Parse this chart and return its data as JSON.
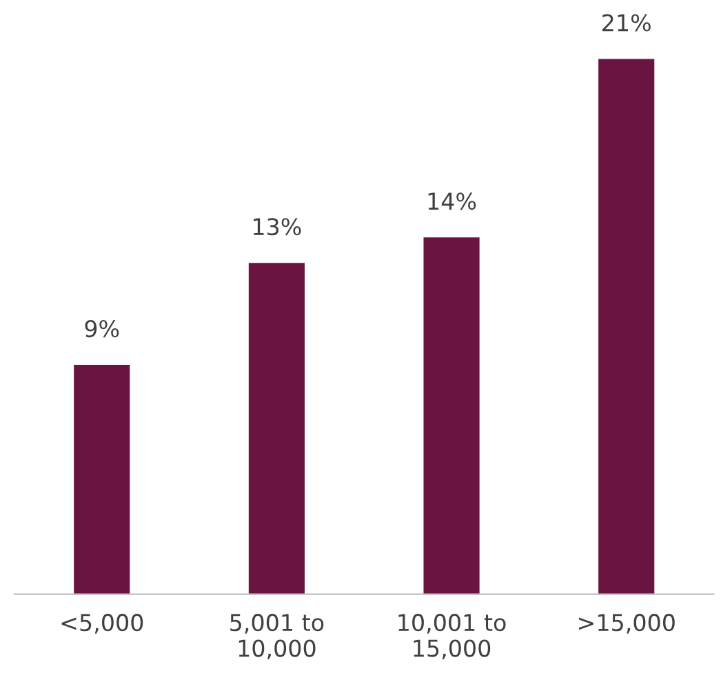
{
  "chart_data": {
    "type": "bar",
    "categories": [
      "<5,000",
      "5,001 to\n10,000",
      "10,001 to\n15,000",
      ">15,000"
    ],
    "values": [
      9,
      13,
      14,
      21
    ],
    "color": "#6a1541",
    "value_labels": [
      "9%",
      "13%",
      "14%",
      "21%"
    ],
    "grid": false,
    "legend": false
  }
}
